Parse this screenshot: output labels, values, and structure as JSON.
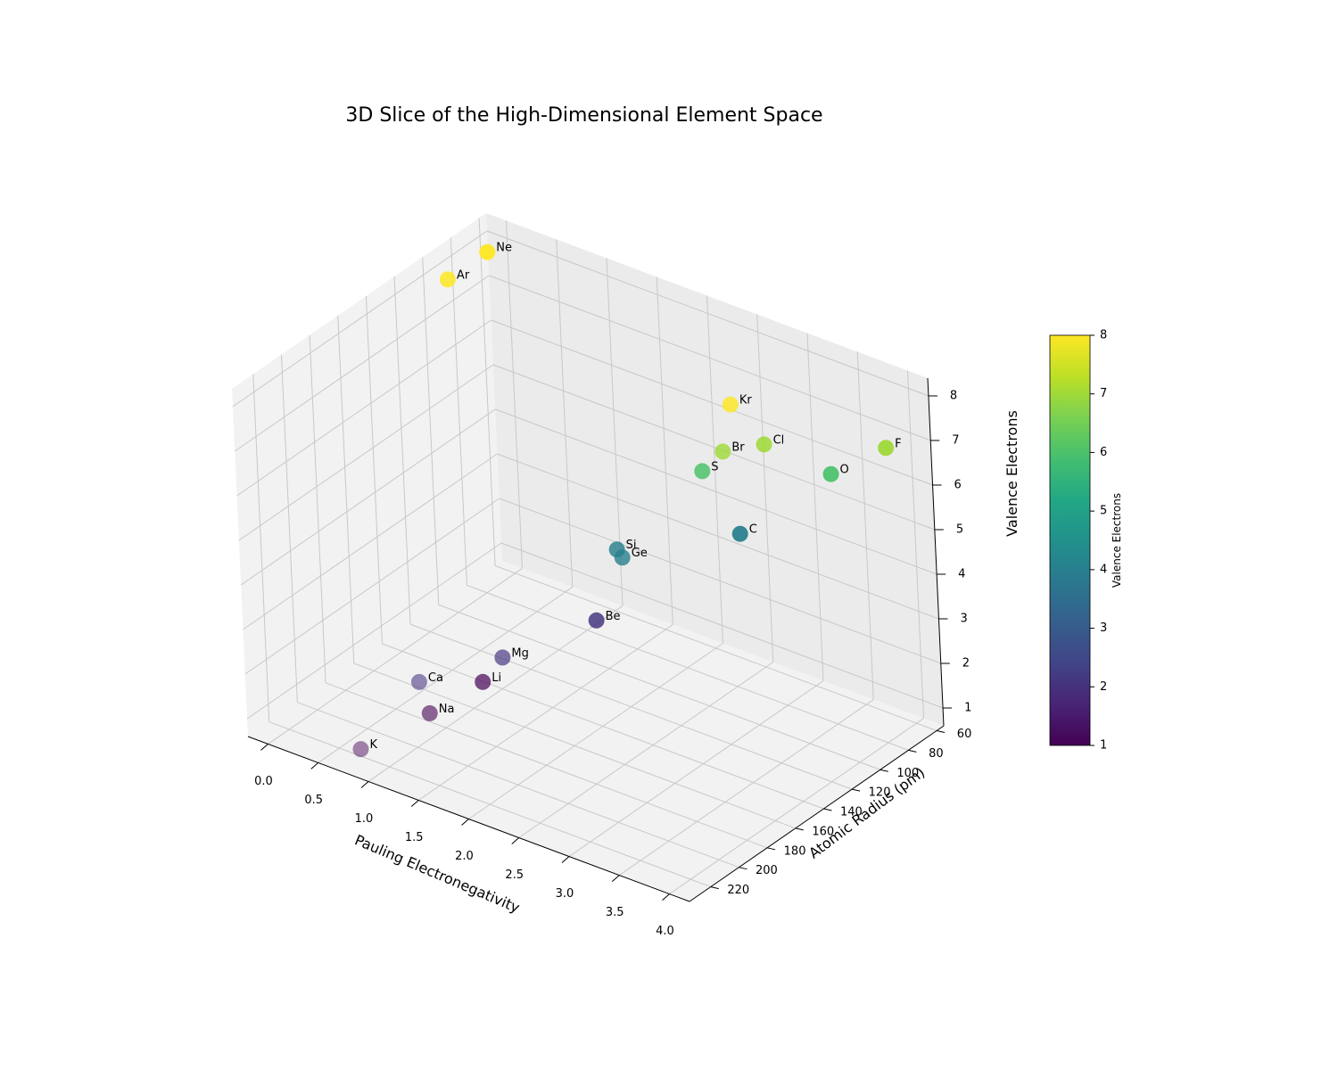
{
  "chart_data": {
    "type": "scatter",
    "projection": "3d",
    "title": "3D Slice of the High-Dimensional Element Space",
    "xlabel": "Pauling Electronegativity",
    "ylabel": "Atomic Radius (pm)",
    "zlabel": "Valence Electrons",
    "xlim": [
      -0.2,
      4.2
    ],
    "ylim": [
      55,
      235
    ],
    "zlim": [
      0.6,
      8.4
    ],
    "xticks": [
      "0.0",
      "0.5",
      "1.0",
      "1.5",
      "2.0",
      "2.5",
      "3.0",
      "3.5",
      "4.0"
    ],
    "yticks": [
      "60",
      "80",
      "100",
      "120",
      "140",
      "160",
      "180",
      "200",
      "220"
    ],
    "zticks": [
      "1",
      "2",
      "3",
      "4",
      "5",
      "6",
      "7",
      "8"
    ],
    "grid": true,
    "colormap": "viridis",
    "colorbar": {
      "label": "Valence Electrons",
      "range": [
        1,
        8
      ],
      "ticks": [
        "1",
        "2",
        "3",
        "4",
        "5",
        "6",
        "7",
        "8"
      ]
    },
    "points": [
      {
        "label": "Li",
        "x": 0.98,
        "y": 152,
        "z": 1
      },
      {
        "label": "Be",
        "x": 1.57,
        "y": 112,
        "z": 2
      },
      {
        "label": "C",
        "x": 2.55,
        "y": 77,
        "z": 4
      },
      {
        "label": "O",
        "x": 3.44,
        "y": 73,
        "z": 6
      },
      {
        "label": "F",
        "x": 3.98,
        "y": 71,
        "z": 7
      },
      {
        "label": "Ne",
        "x": 0.0,
        "y": 69,
        "z": 8
      },
      {
        "label": "Na",
        "x": 0.93,
        "y": 186,
        "z": 1
      },
      {
        "label": "Mg",
        "x": 1.31,
        "y": 160,
        "z": 2
      },
      {
        "label": "Si",
        "x": 1.9,
        "y": 118,
        "z": 4
      },
      {
        "label": "S",
        "x": 2.58,
        "y": 103,
        "z": 6
      },
      {
        "label": "Cl",
        "x": 3.16,
        "y": 99,
        "z": 7
      },
      {
        "label": "Ar",
        "x": 0.0,
        "y": 97,
        "z": 8
      },
      {
        "label": "K",
        "x": 0.82,
        "y": 227,
        "z": 1
      },
      {
        "label": "Ca",
        "x": 1.0,
        "y": 197,
        "z": 2
      },
      {
        "label": "Ge",
        "x": 2.01,
        "y": 122,
        "z": 4
      },
      {
        "label": "Br",
        "x": 2.96,
        "y": 114,
        "z": 7
      },
      {
        "label": "Kr",
        "x": 3.0,
        "y": 110,
        "z": 8
      }
    ]
  }
}
